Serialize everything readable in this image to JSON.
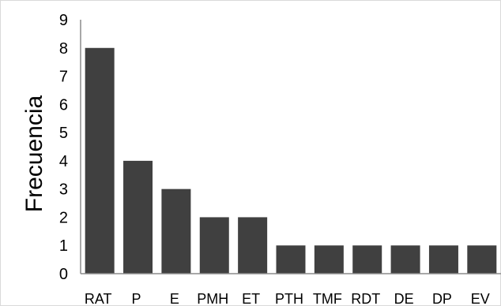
{
  "chart_data": {
    "type": "bar",
    "title": "",
    "xlabel": "",
    "ylabel": "Frecuencia",
    "categories": [
      "RAT",
      "P",
      "E",
      "PMH",
      "ET",
      "PTH",
      "TMF",
      "RDT",
      "DE",
      "DP",
      "EV"
    ],
    "values": [
      8,
      4,
      3,
      2,
      2,
      1,
      1,
      1,
      1,
      1,
      1
    ],
    "ylim": [
      0,
      9
    ],
    "yticks": [
      "0",
      "1",
      "2",
      "3",
      "4",
      "5",
      "6",
      "7",
      "8",
      "9"
    ],
    "grid": false,
    "legend": "none",
    "bar_color": "#404040",
    "frame_color": "#d9d9d9",
    "axis_color": "#8c8c8c"
  }
}
